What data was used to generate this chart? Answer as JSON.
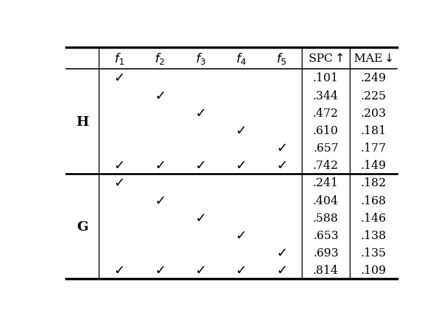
{
  "group_H_label": "H",
  "group_G_label": "G",
  "rows_H": [
    [
      1,
      0,
      0,
      0,
      0,
      ".101",
      ".249"
    ],
    [
      0,
      1,
      0,
      0,
      0,
      ".344",
      ".225"
    ],
    [
      0,
      0,
      1,
      0,
      0,
      ".472",
      ".203"
    ],
    [
      0,
      0,
      0,
      1,
      0,
      ".610",
      ".181"
    ],
    [
      0,
      0,
      0,
      0,
      1,
      ".657",
      ".177"
    ],
    [
      1,
      1,
      1,
      1,
      1,
      ".742",
      ".149"
    ]
  ],
  "rows_G": [
    [
      1,
      0,
      0,
      0,
      0,
      ".241",
      ".182"
    ],
    [
      0,
      1,
      0,
      0,
      0,
      ".404",
      ".168"
    ],
    [
      0,
      0,
      1,
      0,
      0,
      ".588",
      ".146"
    ],
    [
      0,
      0,
      0,
      1,
      0,
      ".653",
      ".138"
    ],
    [
      0,
      0,
      0,
      0,
      1,
      ".693",
      ".135"
    ],
    [
      1,
      1,
      1,
      1,
      1,
      ".814",
      ".109"
    ]
  ],
  "background_color": "#ffffff",
  "text_color": "#000000",
  "checkmark": "✓"
}
